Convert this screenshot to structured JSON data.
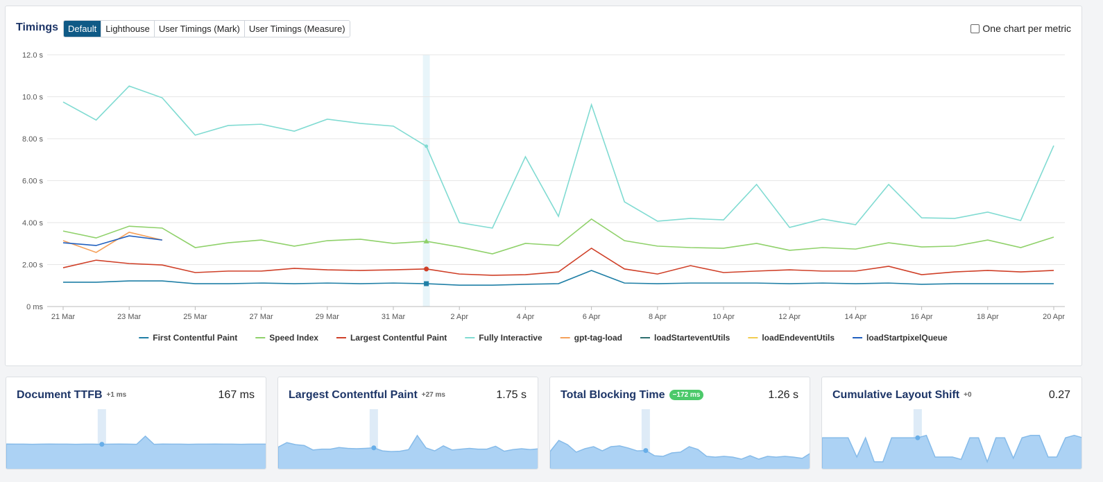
{
  "header": {
    "title": "Timings",
    "tabs": [
      "Default",
      "Lighthouse",
      "User Timings (Mark)",
      "User Timings (Measure)"
    ],
    "checkbox": "One chart per metric"
  },
  "chart_data": {
    "type": "line",
    "categories": [
      "21 Mar",
      null,
      "23 Mar",
      null,
      "25 Mar",
      null,
      "27 Mar",
      null,
      "29 Mar",
      null,
      "31 Mar",
      null,
      "2 Apr",
      null,
      "4 Apr",
      null,
      "6 Apr",
      null,
      "8 Apr",
      null,
      "10 Apr",
      null,
      "12 Apr",
      null,
      "14 Apr",
      null,
      "16 Apr",
      null,
      "18 Apr",
      null,
      "20 Apr"
    ],
    "ylim": [
      0,
      12
    ],
    "yticks": [
      {
        "value": 0,
        "label": "0 ms"
      },
      {
        "value": 2,
        "label": "2.00 s"
      },
      {
        "value": 4,
        "label": "4.00 s"
      },
      {
        "value": 6,
        "label": "6.00 s"
      },
      {
        "value": 8,
        "label": "8.00 s"
      },
      {
        "value": 10,
        "label": "10.0 s"
      },
      {
        "value": 12,
        "label": "12.0 s"
      }
    ],
    "grid": true,
    "series": [
      {
        "name": "First Contentful Paint",
        "color": "#1f7fa6",
        "values": [
          1.16,
          1.16,
          1.22,
          1.22,
          1.09,
          1.09,
          1.12,
          1.09,
          1.12,
          1.09,
          1.12,
          1.09,
          1.02,
          1.02,
          1.06,
          1.09,
          1.72,
          1.12,
          1.09,
          1.12,
          1.12,
          1.12,
          1.09,
          1.12,
          1.09,
          1.12,
          1.06,
          1.09,
          1.09,
          1.09,
          1.09
        ]
      },
      {
        "name": "Speed Index",
        "color": "#8fd16a",
        "values": [
          3.6,
          3.27,
          3.83,
          3.74,
          2.81,
          3.04,
          3.17,
          2.88,
          3.14,
          3.21,
          3.01,
          3.11,
          2.84,
          2.51,
          3.01,
          2.91,
          4.17,
          3.14,
          2.88,
          2.81,
          2.78,
          3.01,
          2.68,
          2.81,
          2.74,
          3.04,
          2.84,
          2.88,
          3.17,
          2.81,
          3.31
        ]
      },
      {
        "name": "Largest Contentful Paint",
        "color": "#cf3f27",
        "values": [
          1.85,
          2.21,
          2.05,
          1.98,
          1.62,
          1.69,
          1.69,
          1.82,
          1.75,
          1.72,
          1.75,
          1.79,
          1.55,
          1.49,
          1.52,
          1.65,
          2.78,
          1.79,
          1.55,
          1.95,
          1.62,
          1.69,
          1.75,
          1.69,
          1.69,
          1.92,
          1.52,
          1.65,
          1.72,
          1.65,
          1.72
        ]
      },
      {
        "name": "Fully Interactive",
        "color": "#80dbd2",
        "values": [
          9.75,
          8.89,
          10.51,
          9.95,
          8.17,
          8.63,
          8.69,
          8.36,
          8.93,
          8.73,
          8.6,
          7.64,
          4.0,
          3.74,
          7.14,
          4.3,
          9.62,
          4.99,
          4.07,
          4.2,
          4.13,
          5.82,
          3.77,
          4.17,
          3.9,
          5.82,
          4.23,
          4.2,
          4.5,
          4.1,
          7.67
        ]
      },
      {
        "name": "gpt-tag-load",
        "color": "#f5a05a",
        "values": [
          3.14,
          2.58,
          3.54,
          3.17,
          null,
          null,
          null,
          null,
          null,
          null,
          null,
          null,
          null,
          null,
          null,
          null,
          null,
          null,
          null,
          null,
          null,
          null,
          null,
          null,
          null,
          null,
          null,
          null,
          null,
          null,
          null
        ]
      },
      {
        "name": "loadStarteventUtils",
        "color": "#2c6e6e",
        "values": [
          null,
          null,
          null,
          null,
          null,
          null,
          null,
          null,
          null,
          null,
          null,
          null,
          null,
          null,
          null,
          null,
          null,
          null,
          null,
          null,
          null,
          null,
          null,
          null,
          null,
          null,
          null,
          null,
          null,
          null,
          null
        ]
      },
      {
        "name": "loadEndeventUtils",
        "color": "#f2cd4f",
        "values": [
          null,
          null,
          null,
          null,
          null,
          null,
          null,
          null,
          null,
          null,
          null,
          null,
          null,
          null,
          null,
          null,
          null,
          null,
          null,
          null,
          null,
          null,
          null,
          null,
          null,
          null,
          null,
          null,
          null,
          null,
          null
        ]
      },
      {
        "name": "loadStartpixelQueue",
        "color": "#1f5fbf",
        "values": [
          3.04,
          2.91,
          3.37,
          3.17,
          null,
          null,
          null,
          null,
          null,
          null,
          null,
          null,
          null,
          null,
          null,
          null,
          null,
          null,
          null,
          null,
          null,
          null,
          null,
          null,
          null,
          null,
          null,
          null,
          null,
          null,
          null
        ]
      }
    ]
  },
  "cards": [
    {
      "title": "Document TTFB",
      "delta": "+1 ms",
      "value": "167 ms",
      "sparkline": {
        "type": "area",
        "ylim": [
          0,
          400
        ],
        "values": [
          168,
          167,
          167,
          166,
          167,
          168,
          167,
          167,
          166,
          167,
          167,
          166,
          167,
          168,
          167,
          166,
          218,
          166,
          168,
          167,
          167,
          166,
          167,
          167,
          168,
          167,
          167,
          166,
          167,
          167,
          167
        ]
      }
    },
    {
      "title": "Largest Contentful Paint",
      "delta": "+27 ms",
      "value": "1.75 s",
      "sparkline": {
        "type": "area",
        "ylim": [
          0,
          5
        ],
        "values": [
          1.85,
          2.21,
          2.05,
          1.98,
          1.62,
          1.69,
          1.69,
          1.82,
          1.75,
          1.72,
          1.75,
          1.79,
          1.55,
          1.49,
          1.52,
          1.65,
          2.78,
          1.79,
          1.55,
          1.95,
          1.62,
          1.69,
          1.75,
          1.69,
          1.69,
          1.92,
          1.52,
          1.65,
          1.72,
          1.65,
          1.72
        ]
      }
    },
    {
      "title": "Total Blocking Time",
      "delta": "−172 ms",
      "value": "1.26 s",
      "sparkline": {
        "type": "area",
        "ylim": [
          0,
          4
        ],
        "values": [
          1.2,
          1.91,
          1.64,
          1.16,
          1.38,
          1.51,
          1.24,
          1.51,
          1.56,
          1.42,
          1.24,
          1.26,
          0.93,
          0.89,
          1.11,
          1.16,
          1.51,
          1.33,
          0.89,
          0.84,
          0.89,
          0.84,
          0.71,
          0.93,
          0.71,
          0.89,
          0.84,
          0.89,
          0.84,
          0.76,
          1.11
        ]
      }
    },
    {
      "title": "Cumulative Layout Shift",
      "delta": "+0",
      "value": "0.27",
      "sparkline": {
        "type": "area",
        "ylim": [
          0,
          0.52
        ],
        "values": [
          0.27,
          0.27,
          0.27,
          0.27,
          0.11,
          0.27,
          0.07,
          0.07,
          0.27,
          0.27,
          0.27,
          0.27,
          0.29,
          0.11,
          0.11,
          0.11,
          0.09,
          0.27,
          0.27,
          0.07,
          0.27,
          0.27,
          0.1,
          0.27,
          0.29,
          0.29,
          0.11,
          0.11,
          0.27,
          0.29,
          0.27
        ]
      }
    }
  ]
}
